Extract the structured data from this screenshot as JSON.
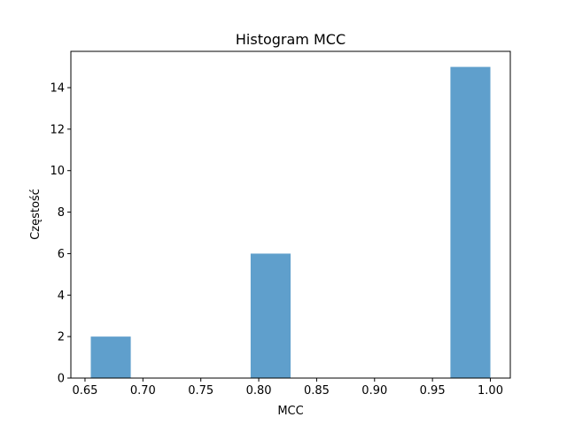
{
  "chart_data": {
    "type": "bar",
    "title": "Histogram MCC",
    "xlabel": "MCC",
    "ylabel": "Częstość",
    "bar_color": "#5F9FCC",
    "bars": [
      {
        "x0": 0.655,
        "x1": 0.6895,
        "count": 2
      },
      {
        "x0": 0.6895,
        "x1": 0.724,
        "count": 0
      },
      {
        "x0": 0.724,
        "x1": 0.7585,
        "count": 0
      },
      {
        "x0": 0.7585,
        "x1": 0.793,
        "count": 0
      },
      {
        "x0": 0.793,
        "x1": 0.8275,
        "count": 6
      },
      {
        "x0": 0.8275,
        "x1": 0.862,
        "count": 0
      },
      {
        "x0": 0.862,
        "x1": 0.8965,
        "count": 0
      },
      {
        "x0": 0.8965,
        "x1": 0.931,
        "count": 0
      },
      {
        "x0": 0.931,
        "x1": 0.9655,
        "count": 0
      },
      {
        "x0": 0.9655,
        "x1": 1.0,
        "count": 15
      }
    ],
    "xlim": [
      0.6378,
      1.0172
    ],
    "ylim": [
      0,
      15.75
    ],
    "xticks": [
      "0.65",
      "0.70",
      "0.75",
      "0.80",
      "0.85",
      "0.90",
      "0.95",
      "1.00"
    ],
    "yticks": [
      "0",
      "2",
      "4",
      "6",
      "8",
      "10",
      "12",
      "14"
    ],
    "grid": false,
    "legend": "none"
  }
}
